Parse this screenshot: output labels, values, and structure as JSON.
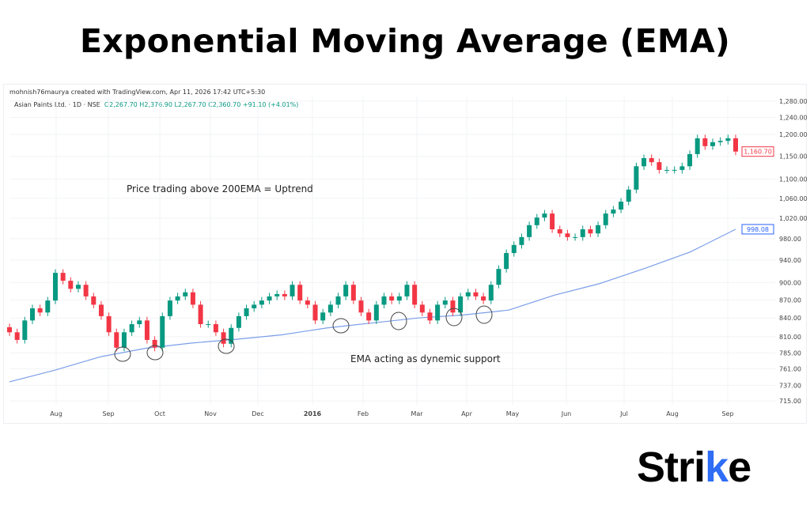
{
  "title": "Exponential Moving Average (EMA)",
  "credit": "mohnish76maurya created with TradingView.com, Apr 11, 2026 17:42 UTC+5:30",
  "legend": {
    "symbol": "Asian Paints Ltd. · 1D · NSE",
    "open": "O2,267.70",
    "high": "H2,376.90",
    "low": "L2,267.70",
    "close": "C2,360.70",
    "change": "+91.10 (+4.01%)"
  },
  "annotations": {
    "uptrend": "Price trading above 200EMA = Uptrend",
    "support": "EMA acting as dynemic support"
  },
  "logo": {
    "text": "Strike",
    "accent_color": "#2f6df6"
  },
  "colors": {
    "up": "#089981",
    "down": "#f23645",
    "ema": "#7b9ee8",
    "grid": "#f2f3f5"
  },
  "chart_data": {
    "type": "candlestick",
    "scale": "log",
    "ylim": [
      700,
      1290
    ],
    "grid": true,
    "y_ticks": [
      "1,280.00",
      "1,240.00",
      "1,200.00",
      "1,150.00",
      "1,100.00",
      "1,060.00",
      "1,020.00",
      "980.00",
      "940.00",
      "900.00",
      "870.00",
      "840.00",
      "810.00",
      "785.00",
      "761.00",
      "737.00",
      "715.00"
    ],
    "x_ticks": [
      "Aug",
      "Sep",
      "Oct",
      "Nov",
      "Dec",
      "2016",
      "Feb",
      "Mar",
      "Apr",
      "May",
      "Jun",
      "Jul",
      "Aug",
      "Sep"
    ],
    "close": [
      817,
      805,
      836,
      856,
      849,
      869,
      917,
      903,
      889,
      896,
      876,
      862,
      843,
      817,
      793,
      817,
      830,
      836,
      805,
      793,
      843,
      869,
      876,
      883,
      862,
      830,
      830,
      817,
      799,
      824,
      843,
      856,
      862,
      869,
      876,
      880,
      876,
      896,
      869,
      862,
      836,
      849,
      862,
      876,
      896,
      869,
      849,
      836,
      862,
      876,
      869,
      876,
      896,
      862,
      849,
      836,
      862,
      869,
      849,
      876,
      883,
      876,
      869,
      896,
      924,
      953,
      968,
      983,
      1006,
      1021,
      1029,
      998,
      990,
      983,
      983,
      998,
      990,
      1006,
      1029,
      1037,
      1053,
      1078,
      1128,
      1146,
      1137,
      1120,
      1120,
      1120,
      1128,
      1155,
      1191,
      1173,
      1182,
      1185,
      1191,
      1160.7
    ],
    "ema_200": [
      742,
      759,
      779,
      792,
      800,
      806,
      813,
      824,
      832,
      840,
      845,
      853,
      878,
      898,
      925,
      955,
      998
    ],
    "last_price_label": "1,160.70",
    "ema_label": "998.08"
  }
}
